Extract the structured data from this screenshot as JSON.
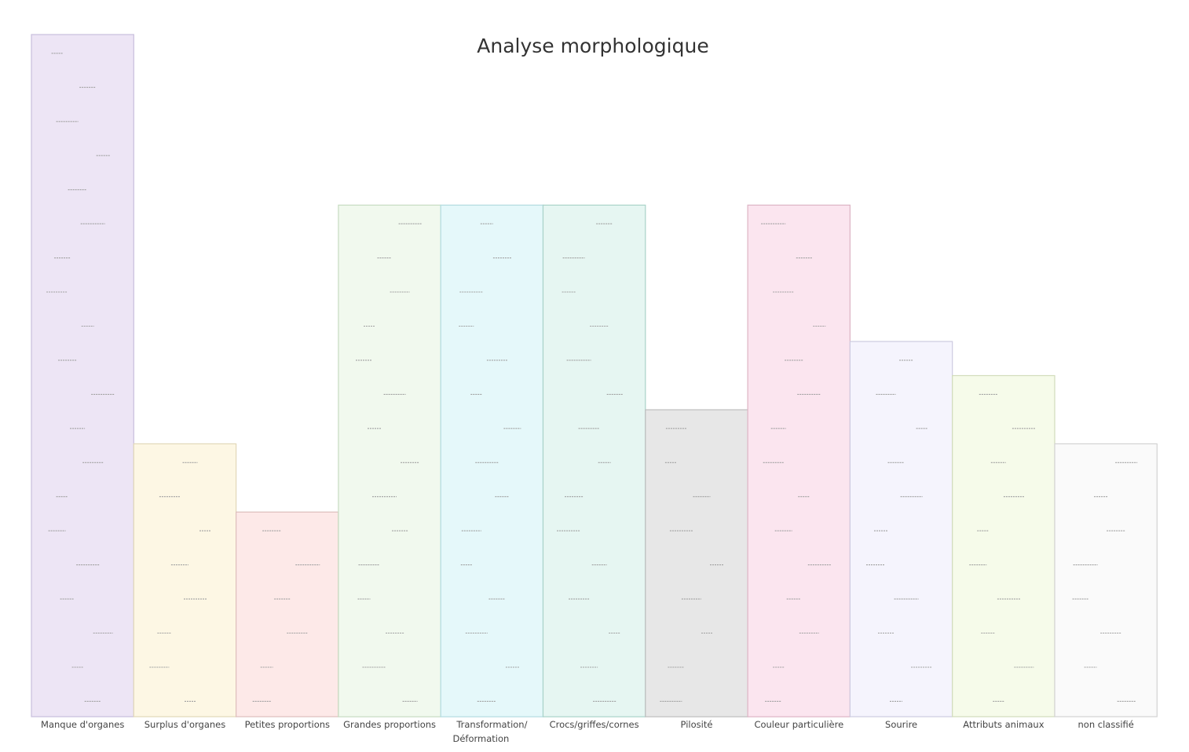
{
  "chart_data": {
    "type": "bar",
    "title": "Analyse morphologique",
    "xlabel": "",
    "ylabel": "",
    "grid": false,
    "categories": [
      "Manque d'organes",
      "Surplus d'organes",
      "Petites proportions",
      "Grandes proportions",
      "Transformation/ Déformation",
      "Crocs/griffes/cornes",
      "Pilosité",
      "Couleur particulière",
      "Sourire",
      "Attributs animaux",
      "non classifié"
    ],
    "values": [
      20,
      8,
      6,
      15,
      15,
      15,
      9,
      15,
      11,
      10,
      8
    ],
    "ylim": [
      0,
      20
    ],
    "colors": {
      "fills": [
        "#ede5f5",
        "#fdf7e4",
        "#fde9e8",
        "#f1f9ee",
        "#e5f8fa",
        "#e6f6f2",
        "#e7e7e7",
        "#fbe5ef",
        "#f5f4fd",
        "#f6fbea",
        "#fafafa"
      ],
      "strokes": [
        "#c8bedc",
        "#e2d8b8",
        "#ddbebc",
        "#c6dcc1",
        "#b2dbe0",
        "#a9d2c9",
        "#bebebe",
        "#ddb4c4",
        "#cdcbe0",
        "#d2dcbb",
        "#d3d3d3"
      ],
      "title": "#333333",
      "label": "#444444"
    }
  }
}
